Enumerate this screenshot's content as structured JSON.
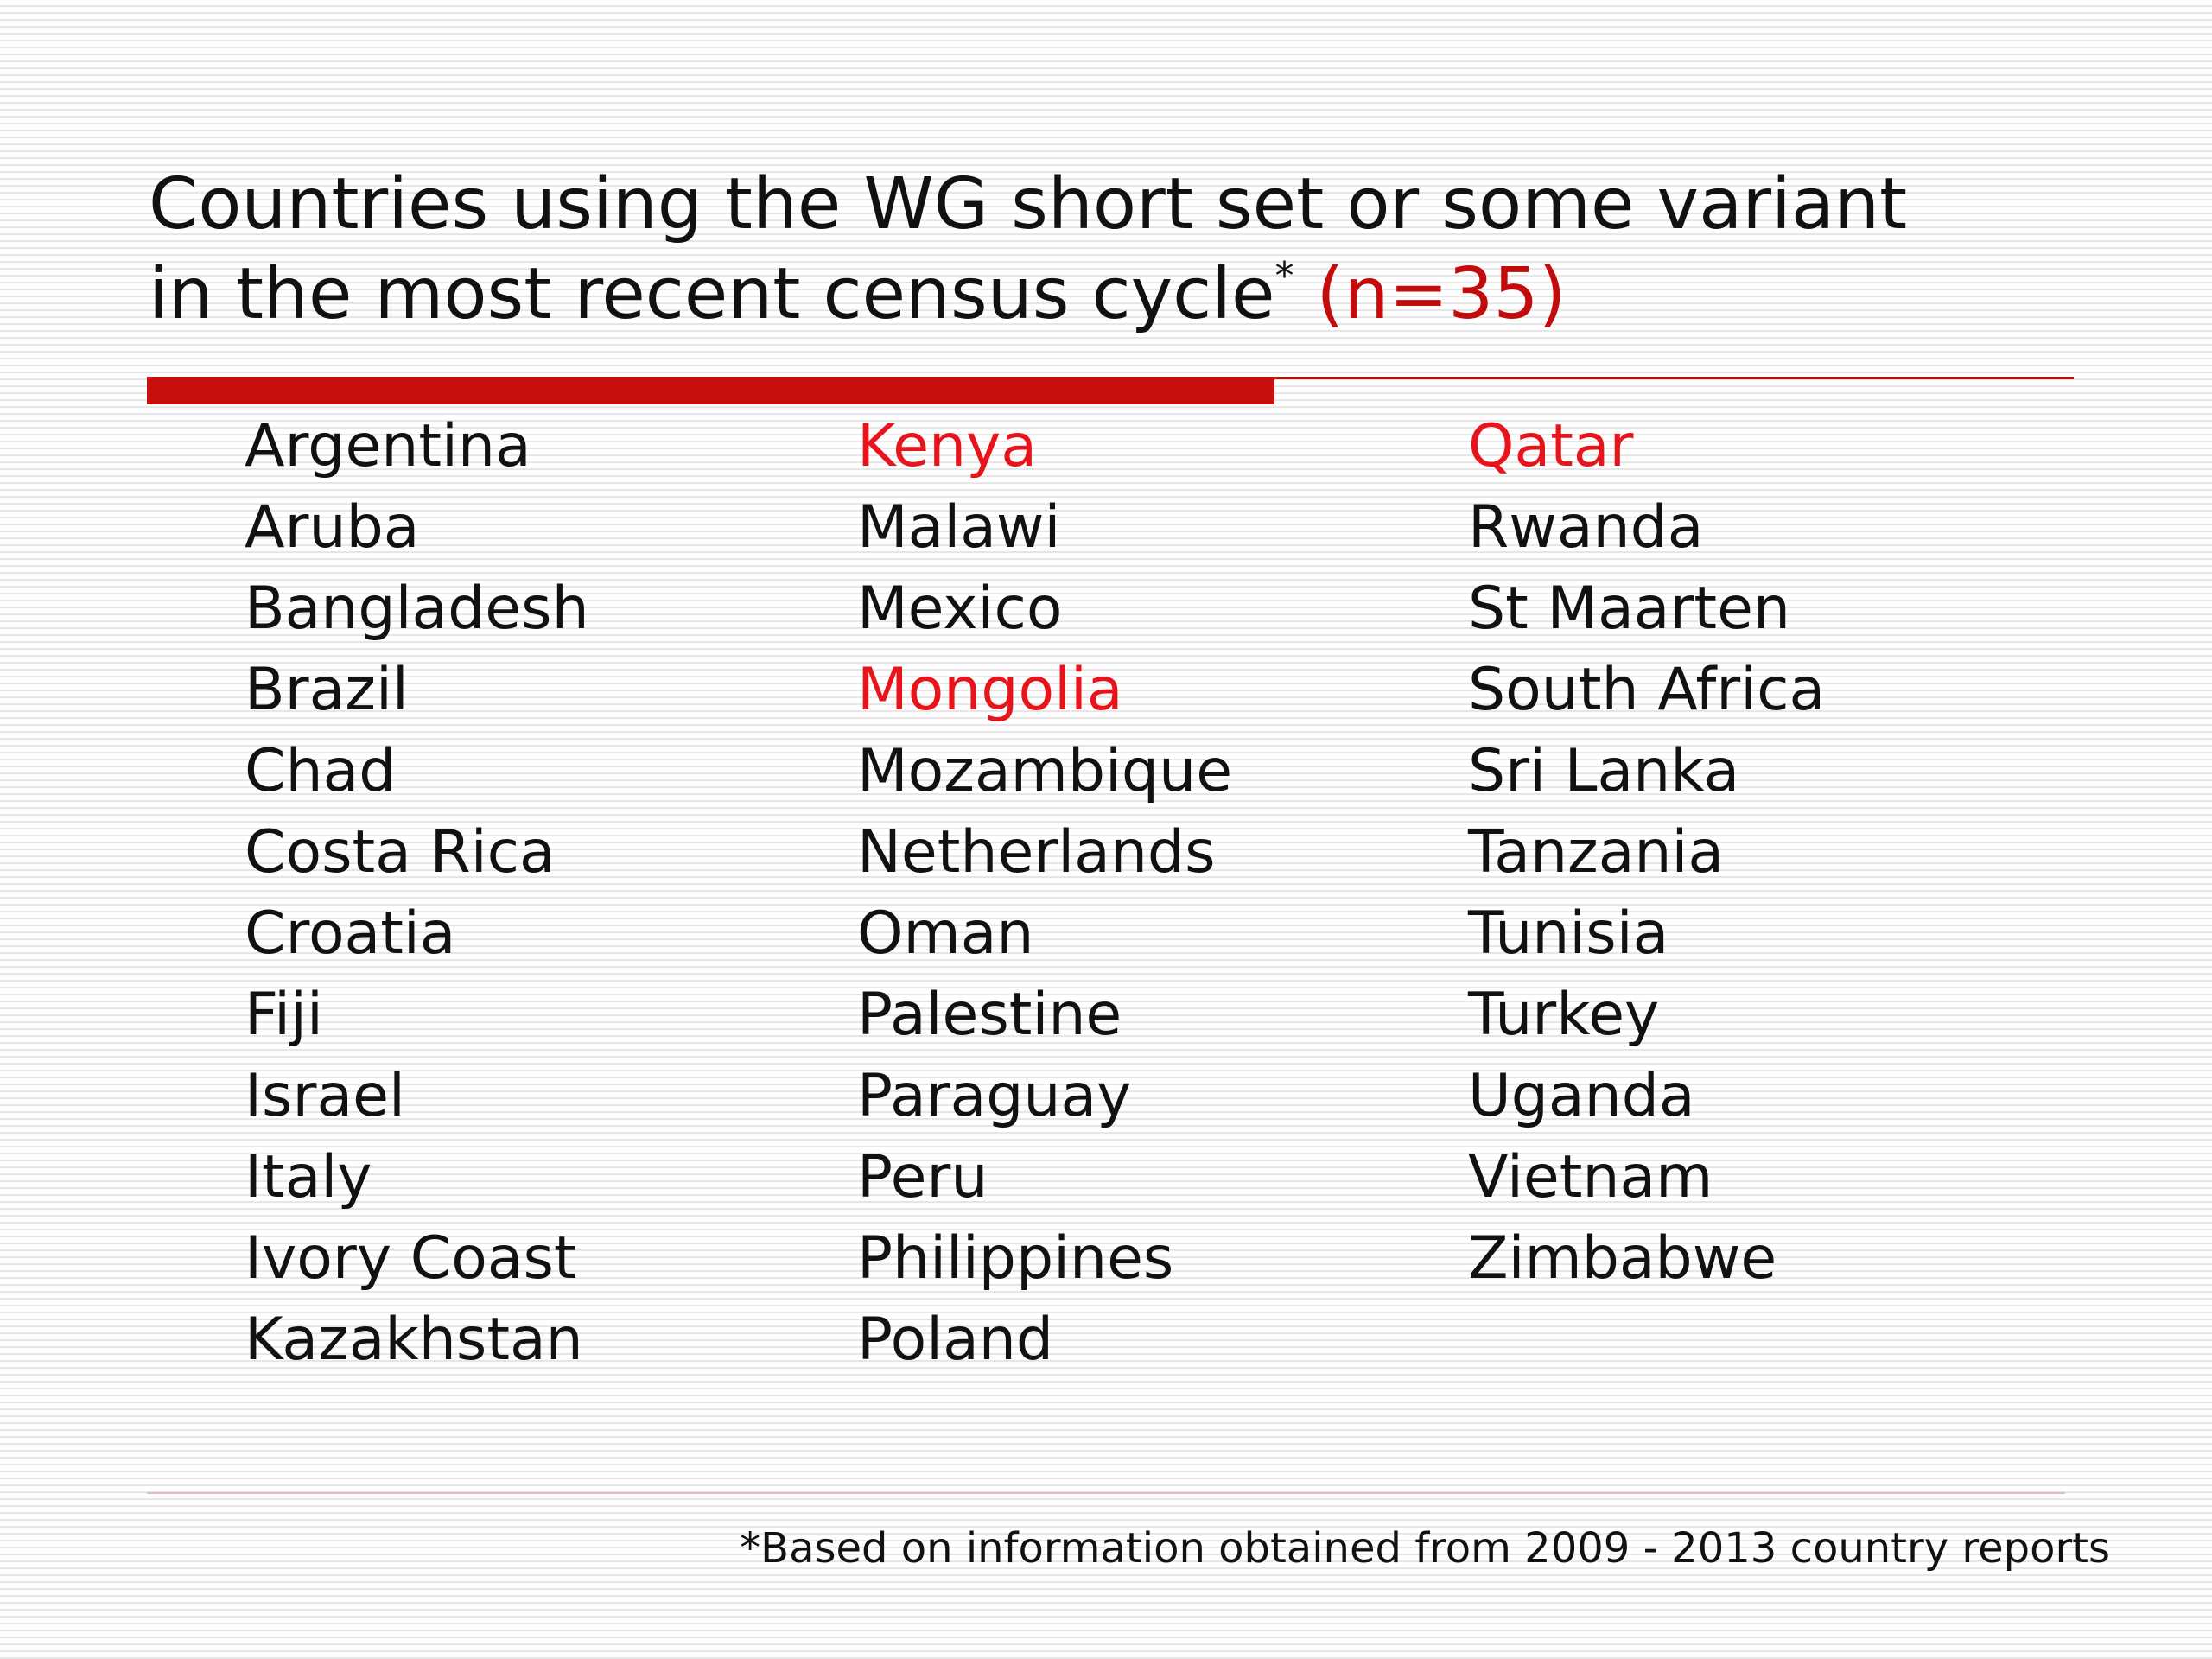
{
  "title": {
    "line1": "Countries using the WG short set or some variant",
    "line2": "in the most recent census cycle",
    "asterisk": "*",
    "count": "(n=35)"
  },
  "colors": {
    "accent": "#c80f0f",
    "highlight_text": "#e8141b"
  },
  "columns": [
    {
      "items": [
        {
          "name": "Argentina",
          "highlight": false
        },
        {
          "name": "Aruba",
          "highlight": false
        },
        {
          "name": "Bangladesh",
          "highlight": false
        },
        {
          "name": "Brazil",
          "highlight": false
        },
        {
          "name": "Chad",
          "highlight": false
        },
        {
          "name": "Costa Rica",
          "highlight": false
        },
        {
          "name": "Croatia",
          "highlight": false
        },
        {
          "name": "Fiji",
          "highlight": false
        },
        {
          "name": "Israel",
          "highlight": false
        },
        {
          "name": "Italy",
          "highlight": false
        },
        {
          "name": "Ivory Coast",
          "highlight": false
        },
        {
          "name": "Kazakhstan",
          "highlight": false
        }
      ]
    },
    {
      "items": [
        {
          "name": "Kenya",
          "highlight": true
        },
        {
          "name": "Malawi",
          "highlight": false
        },
        {
          "name": "Mexico",
          "highlight": false
        },
        {
          "name": "Mongolia",
          "highlight": true
        },
        {
          "name": "Mozambique",
          "highlight": false
        },
        {
          "name": "Netherlands",
          "highlight": false
        },
        {
          "name": "Oman",
          "highlight": false
        },
        {
          "name": "Palestine",
          "highlight": false
        },
        {
          "name": "Paraguay",
          "highlight": false
        },
        {
          "name": "Peru",
          "highlight": false
        },
        {
          "name": "Philippines",
          "highlight": false
        },
        {
          "name": "Poland",
          "highlight": false
        }
      ]
    },
    {
      "items": [
        {
          "name": "Qatar",
          "highlight": true
        },
        {
          "name": "Rwanda",
          "highlight": false
        },
        {
          "name": "St Maarten",
          "highlight": false
        },
        {
          "name": "South Africa",
          "highlight": false
        },
        {
          "name": "Sri Lanka",
          "highlight": false
        },
        {
          "name": "Tanzania",
          "highlight": false
        },
        {
          "name": "Tunisia",
          "highlight": false
        },
        {
          "name": "Turkey",
          "highlight": false
        },
        {
          "name": "Uganda",
          "highlight": false
        },
        {
          "name": "Vietnam",
          "highlight": false
        },
        {
          "name": "Zimbabwe",
          "highlight": false
        }
      ]
    }
  ],
  "footnote": "*Based on information obtained from 2009 - 2013 country reports"
}
